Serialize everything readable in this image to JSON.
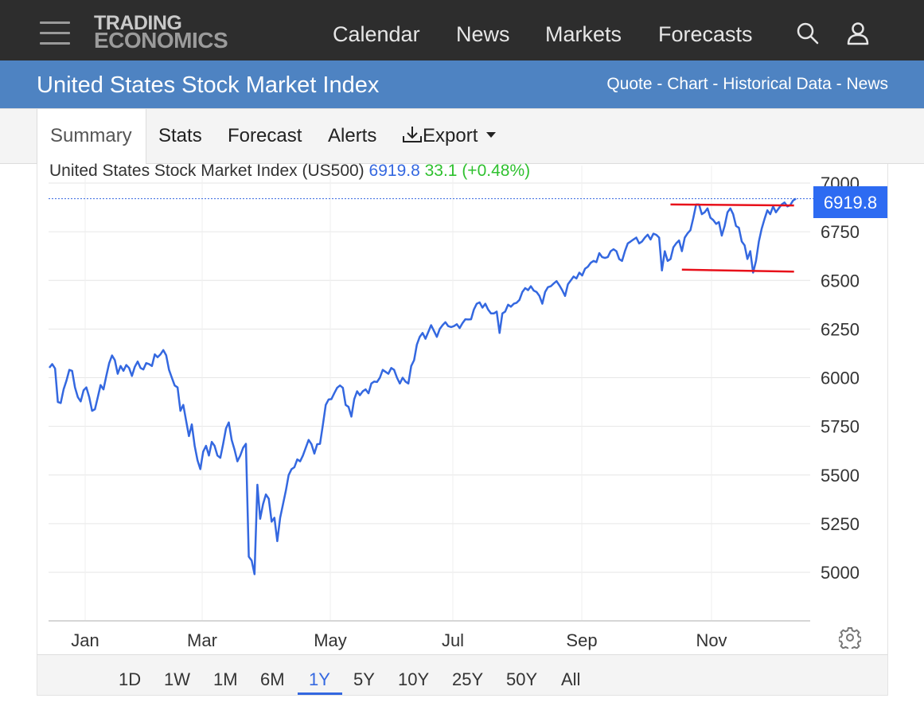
{
  "header": {
    "logo_line1": "TRADING",
    "logo_line2": "ECONOMICS",
    "nav": [
      "Calendar",
      "News",
      "Markets",
      "Forecasts"
    ]
  },
  "subheader": {
    "title": "United States Stock Market Index",
    "links": [
      "Quote",
      "Chart",
      "Historical Data",
      "News"
    ],
    "separator": " - "
  },
  "tabs": {
    "items": [
      "Summary",
      "Stats",
      "Forecast",
      "Alerts"
    ],
    "export_label": "Export",
    "active": "Summary"
  },
  "legend": {
    "name": "United States Stock Market Index (US500)",
    "price": "6919.8",
    "change": "33.1 (+0.48%)"
  },
  "price_tag": "6919.8",
  "colors": {
    "topbar": "#2d2d2d",
    "subbar": "#4e83c2",
    "line": "#3468e0",
    "trendline": "#e8101a",
    "change_up": "#2fc12f",
    "price_tag": "#2d6bf2"
  },
  "icons": {
    "menu": "hamburger-icon",
    "search": "search-icon",
    "user": "user-icon",
    "export": "download-icon",
    "settings": "gear-icon"
  },
  "ranges": [
    "1D",
    "1W",
    "1M",
    "6M",
    "1Y",
    "5Y",
    "10Y",
    "25Y",
    "50Y",
    "All"
  ],
  "active_range": "1Y",
  "chart_data": {
    "type": "line",
    "title": "",
    "xlabel": "",
    "ylabel": "",
    "x_ticks": [
      "Jan",
      "Mar",
      "May",
      "Jul",
      "Sep",
      "Nov"
    ],
    "y_ticks": [
      5000,
      5250,
      5500,
      5750,
      6000,
      6250,
      6500,
      6750,
      7000
    ],
    "ylim": [
      4740,
      7010
    ],
    "grid": true,
    "series": [
      {
        "values": [
          6051,
          6070,
          6047,
          5875,
          5870,
          5940,
          5985,
          6040,
          6035,
          5950,
          5900,
          5878,
          5935,
          5950,
          5900,
          5830,
          5838,
          5900,
          5962,
          5940,
          6010,
          6075,
          6114,
          6090,
          6020,
          6060,
          6035,
          6065,
          6050,
          6009,
          6056,
          6083,
          6050,
          6042,
          6075,
          6070,
          6060,
          6120,
          6105,
          6120,
          6142,
          6115,
          6040,
          6000,
          5960,
          5950,
          5830,
          5860,
          5780,
          5700,
          5760,
          5650,
          5575,
          5530,
          5620,
          5650,
          5600,
          5670,
          5650,
          5600,
          5588,
          5660,
          5740,
          5770,
          5680,
          5630,
          5570,
          5600,
          5640,
          5660,
          5080,
          5060,
          4990,
          5450,
          5275,
          5350,
          5400,
          5378,
          5260,
          5280,
          5160,
          5280,
          5350,
          5420,
          5500,
          5530,
          5540,
          5580,
          5570,
          5600,
          5640,
          5680,
          5658,
          5610,
          5658,
          5660,
          5758,
          5860,
          5888,
          5890,
          5920,
          5948,
          5960,
          5948,
          5860,
          5850,
          5800,
          5890,
          5930,
          5910,
          5930,
          5940,
          5920,
          5970,
          5980,
          5978,
          6000,
          6040,
          6030,
          6020,
          6050,
          6040,
          6000,
          5970,
          6000,
          5980,
          5970,
          6060,
          6090,
          6170,
          6210,
          6230,
          6200,
          6235,
          6270,
          6240,
          6210,
          6250,
          6270,
          6285,
          6265,
          6260,
          6265,
          6275,
          6255,
          6280,
          6300,
          6299,
          6300,
          6350,
          6380,
          6387,
          6360,
          6380,
          6350,
          6330,
          6330,
          6340,
          6230,
          6330,
          6340,
          6375,
          6365,
          6380,
          6385,
          6400,
          6440,
          6460,
          6450,
          6470,
          6448,
          6440,
          6420,
          6380,
          6440,
          6465,
          6470,
          6484,
          6496,
          6475,
          6450,
          6420,
          6480,
          6500,
          6520,
          6510,
          6540,
          6525,
          6560,
          6570,
          6590,
          6600,
          6594,
          6640,
          6620,
          6615,
          6620,
          6650,
          6660,
          6650,
          6610,
          6600,
          6650,
          6690,
          6700,
          6710,
          6720,
          6690,
          6700,
          6720,
          6735,
          6710,
          6740,
          6734,
          6720,
          6551,
          6650,
          6600,
          6610,
          6670,
          6690,
          6705,
          6650,
          6720,
          6742,
          6758,
          6820,
          6890,
          6890,
          6840,
          6850,
          6870,
          6822,
          6810,
          6790,
          6800,
          6730,
          6780,
          6850,
          6870,
          6840,
          6780,
          6770,
          6700,
          6680,
          6610,
          6650,
          6540,
          6600,
          6700,
          6765,
          6815,
          6860,
          6840,
          6880,
          6850,
          6870,
          6890,
          6900,
          6880,
          6886,
          6910,
          6920
        ]
      }
    ],
    "trendlines": [
      {
        "from": [
          218,
          6890
        ],
        "to": [
          258,
          6885
        ]
      },
      {
        "from": [
          222,
          6555
        ],
        "to": [
          258,
          6545
        ]
      }
    ],
    "last_value": 6919.8
  }
}
